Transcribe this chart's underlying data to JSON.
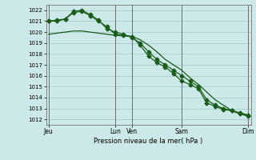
{
  "background_color": "#cce8e8",
  "grid_color": "#aacccc",
  "line_color": "#1a5c1a",
  "ylabel": "Pression niveau de la mer( hPa )",
  "ylim_min": 1011.5,
  "ylim_max": 1022.5,
  "yticks": [
    1012,
    1013,
    1014,
    1015,
    1016,
    1017,
    1018,
    1019,
    1020,
    1021,
    1022
  ],
  "xtick_labels": [
    "Jeu",
    "Lun",
    "Ven",
    "Sam",
    "Dim"
  ],
  "xtick_positions": [
    0,
    8,
    10,
    16,
    24
  ],
  "vline_positions": [
    0,
    8,
    10,
    16,
    24
  ],
  "xlim_min": -0.3,
  "xlim_max": 24.3,
  "series1_x": [
    0,
    1,
    2,
    3,
    4,
    5,
    6,
    7,
    8,
    9,
    10,
    11,
    12,
    13,
    14,
    15,
    16,
    17,
    18,
    19,
    20,
    21,
    22,
    23,
    24
  ],
  "series1_y": [
    1021.0,
    1021.0,
    1021.2,
    1021.8,
    1021.9,
    1021.5,
    1021.0,
    1020.5,
    1019.8,
    1019.7,
    1019.6,
    1018.8,
    1017.8,
    1017.2,
    1016.8,
    1016.2,
    1015.5,
    1015.2,
    1014.8,
    1013.5,
    1013.2,
    1012.9,
    1012.8,
    1012.5,
    1012.3
  ],
  "series2_x": [
    0,
    1,
    2,
    3,
    4,
    5,
    6,
    7,
    8,
    9,
    10,
    11,
    12,
    13,
    14,
    15,
    16,
    17,
    18,
    19,
    20,
    21,
    22,
    23,
    24
  ],
  "series2_y": [
    1021.0,
    1021.1,
    1021.2,
    1021.9,
    1022.0,
    1021.6,
    1021.1,
    1020.3,
    1020.0,
    1019.8,
    1019.5,
    1019.0,
    1018.2,
    1017.5,
    1017.0,
    1016.5,
    1016.0,
    1015.5,
    1015.0,
    1013.8,
    1013.3,
    1013.0,
    1012.8,
    1012.6,
    1012.4
  ],
  "series3_x": [
    0,
    1,
    2,
    3,
    4,
    5,
    6,
    7,
    8,
    9,
    10,
    11,
    12,
    13,
    14,
    15,
    16,
    17,
    18,
    19,
    20,
    21,
    22,
    23,
    24
  ],
  "series3_y": [
    1019.8,
    1019.9,
    1020.0,
    1020.1,
    1020.1,
    1020.0,
    1019.9,
    1019.8,
    1019.7,
    1019.65,
    1019.6,
    1019.3,
    1018.8,
    1018.2,
    1017.5,
    1017.0,
    1016.5,
    1015.8,
    1015.2,
    1014.5,
    1013.8,
    1013.3,
    1012.8,
    1012.5,
    1012.3
  ]
}
